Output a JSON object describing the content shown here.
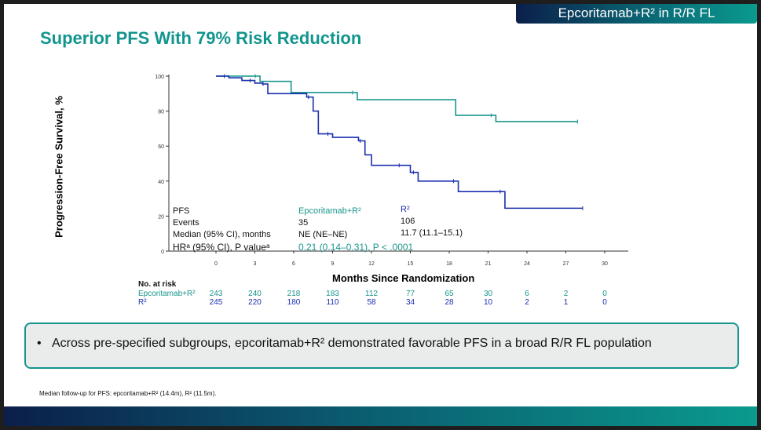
{
  "header": {
    "badge": "Epcoritamab+R² in R/R FL",
    "title": "Superior PFS With 79% Risk Reduction"
  },
  "chart_data": {
    "type": "line",
    "title": "Superior PFS With 79% Risk Reduction",
    "xlabel": "Months Since Randomization",
    "ylabel": "Progression-Free Survival, %",
    "xlim": [
      0,
      30
    ],
    "ylim": [
      0,
      100
    ],
    "xticks": [
      "0",
      "3",
      "6",
      "9",
      "12",
      "15",
      "18",
      "21",
      "24",
      "27",
      "30"
    ],
    "yticks": [
      "0",
      "20",
      "40",
      "60",
      "80",
      "100"
    ],
    "series": [
      {
        "name": "Epcoritamab+R²",
        "color": "#17958d",
        "step": true,
        "x": [
          0,
          3.4,
          5.8,
          10.9,
          18.5,
          21.6,
          27.9
        ],
        "y": [
          100,
          97,
          90.6,
          86.5,
          77.6,
          74,
          74
        ]
      },
      {
        "name": "R²",
        "color": "#1b2fb0",
        "step": true,
        "x": [
          0,
          1,
          2,
          3,
          3.6,
          4,
          7,
          7.5,
          7.9,
          9,
          11,
          11.5,
          12,
          14.5,
          15,
          15.6,
          18,
          18.7,
          22,
          22.3,
          28.3
        ],
        "y": [
          100,
          99,
          97.5,
          96,
          95.5,
          90,
          88,
          80,
          67,
          65,
          63,
          55,
          49,
          49,
          45,
          40,
          40,
          34,
          34,
          24.5,
          24.5
        ]
      }
    ],
    "stats_table": {
      "header": [
        "PFS",
        "Epcoritamab+R²",
        "R²"
      ],
      "rows": [
        [
          "Events",
          "35",
          "106"
        ],
        [
          "Median (95% CI), months",
          "NE (NE–NE)",
          "11.7 (11.1–15.1)"
        ]
      ],
      "hr_label": "HRᵃ (95% CI), P valueᵃ",
      "hr_value": "0.21 (0.14–0.31), P < .0001"
    },
    "at_risk": {
      "label": "No. at risk",
      "rows": [
        {
          "name": "Epcoritamab+R²",
          "values": [
            "243",
            "240",
            "218",
            "183",
            "112",
            "77",
            "65",
            "30",
            "6",
            "2",
            "0"
          ]
        },
        {
          "name": "R²",
          "values": [
            "245",
            "220",
            "180",
            "110",
            "58",
            "34",
            "28",
            "10",
            "2",
            "1",
            "0"
          ]
        }
      ]
    }
  },
  "bullet": "Across pre-specified subgroups, epcoritamab+R² demonstrated favorable PFS in a broad R/R FL population",
  "footnote": "Median follow-up for PFS: epcoritamab+R² (14.4m), R² (11.5m)."
}
